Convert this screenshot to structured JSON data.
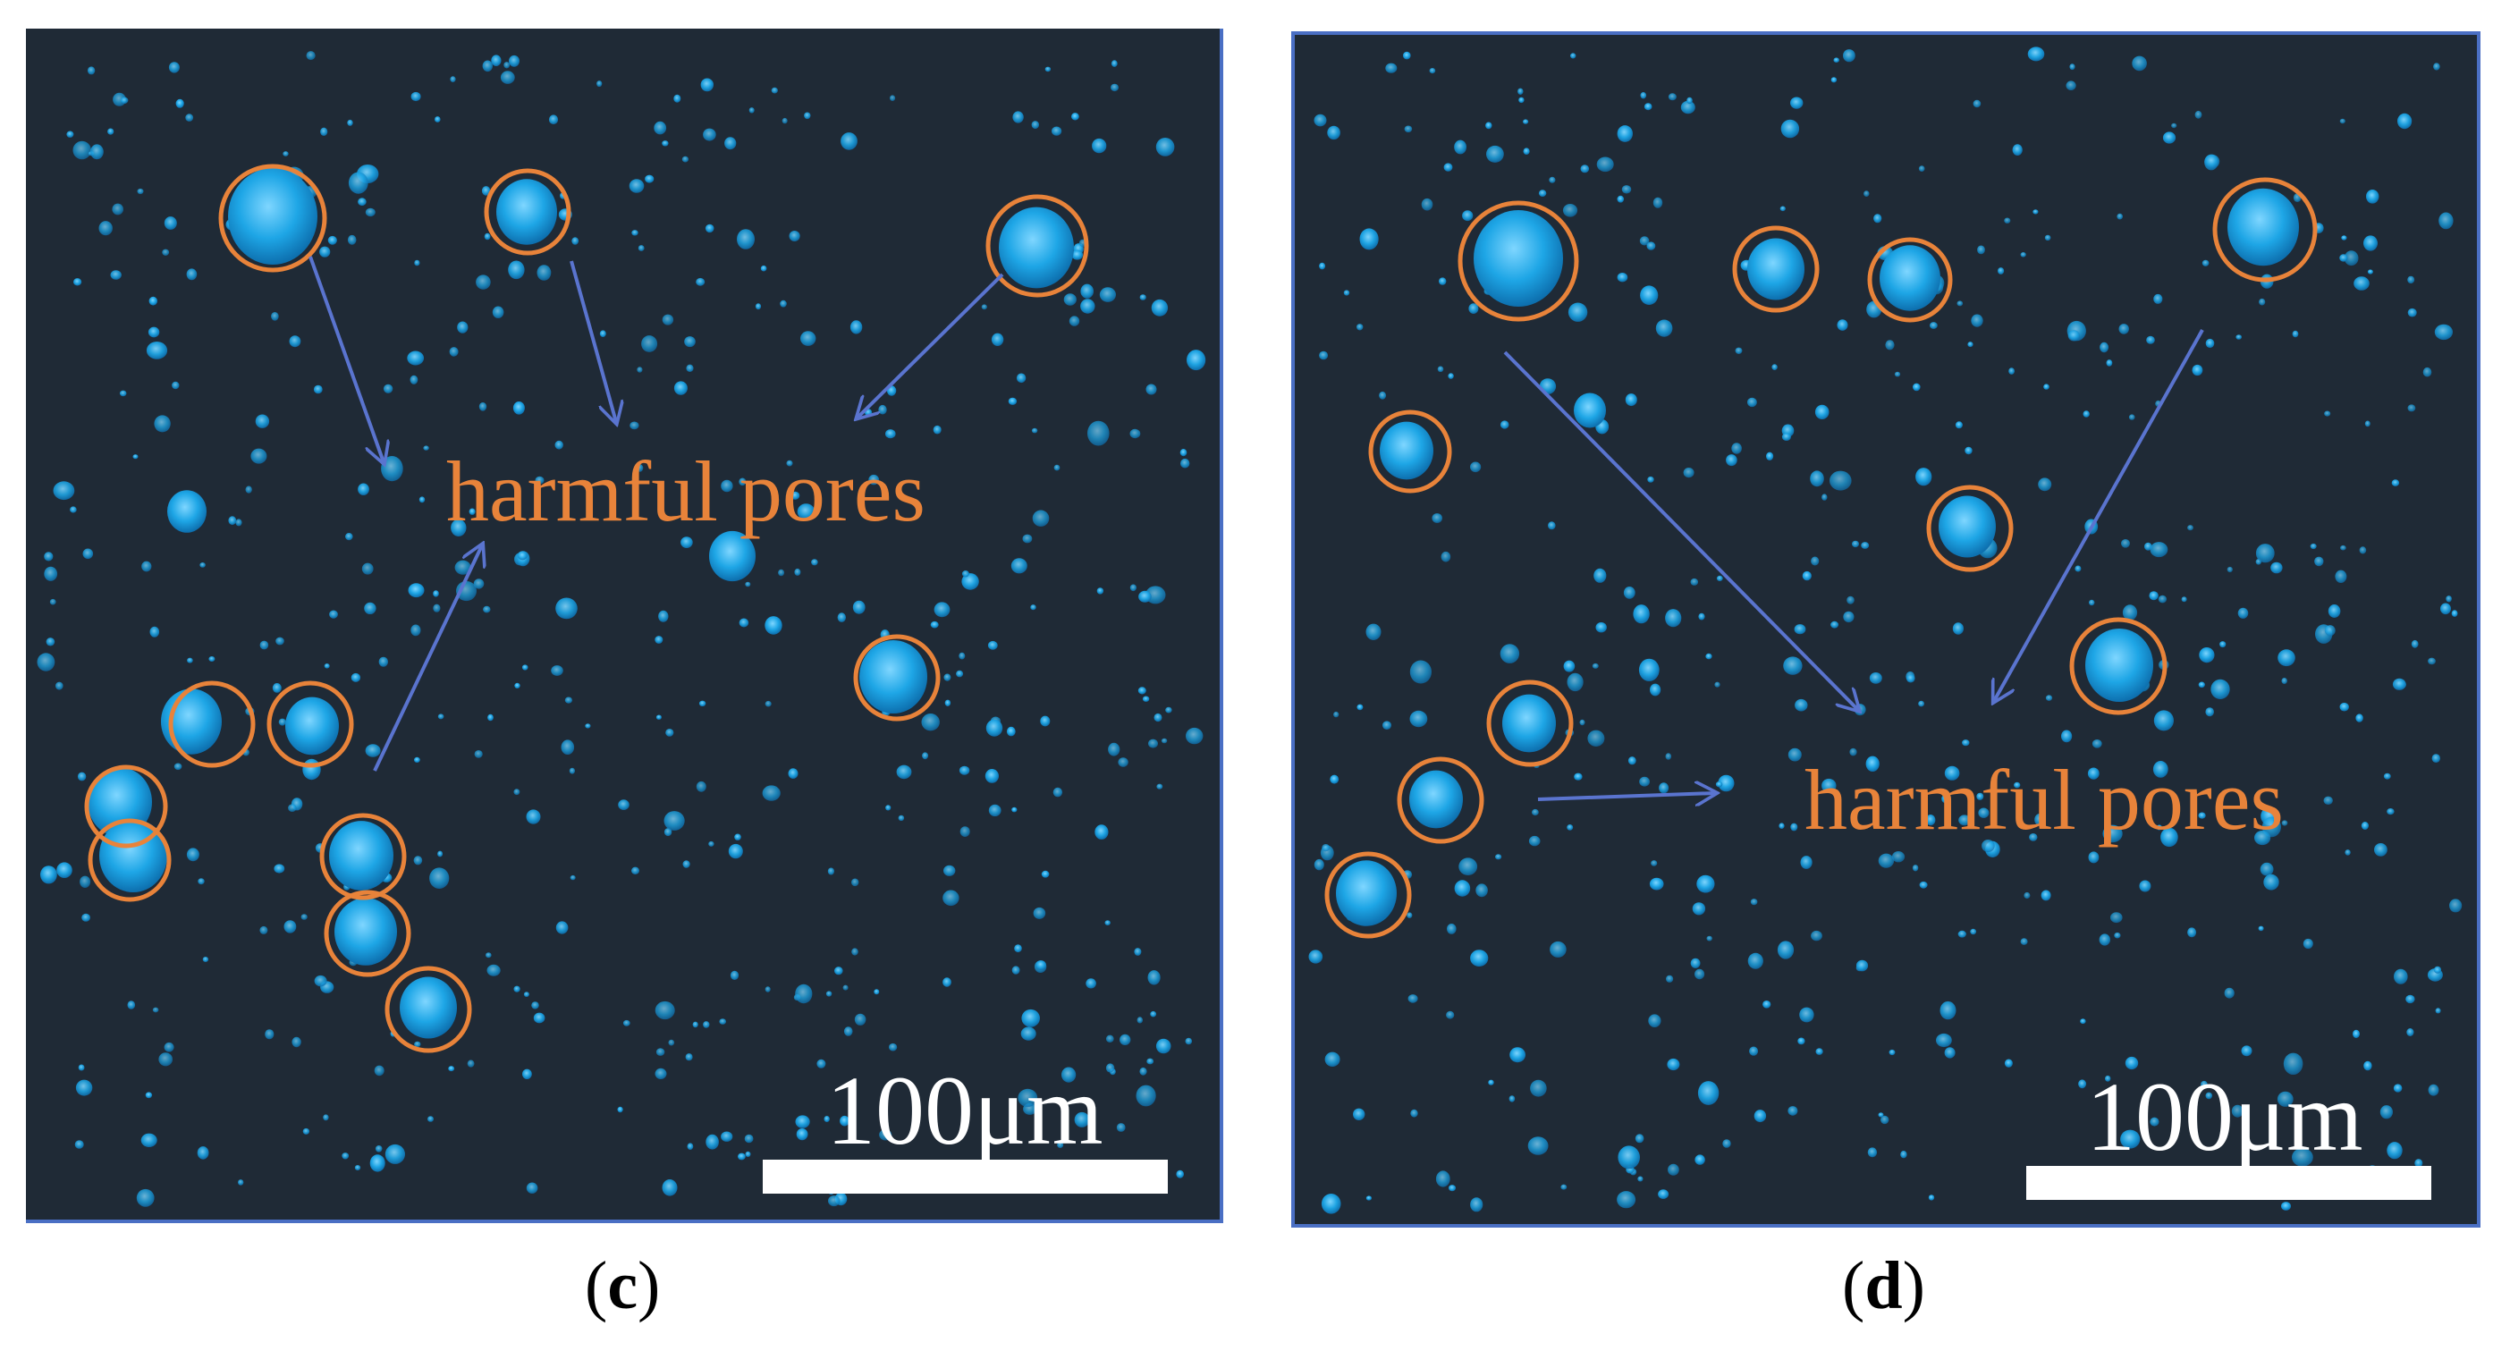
{
  "panels": [
    {
      "id": "c",
      "caption_open": "(",
      "caption_letter": "c",
      "caption_close": ")",
      "annotation": "harmful pores",
      "scale_label": "100μm"
    },
    {
      "id": "d",
      "caption_open": "(",
      "caption_letter": "d",
      "caption_close": ")",
      "annotation": "harmful pores",
      "scale_label": "100μm"
    }
  ],
  "colors": {
    "background": "#1f2a36",
    "pore": "#1ea6e6",
    "circle": "#e8833a",
    "arrow": "#5a74cf",
    "annotation": "#e8833a",
    "scale": "#ffffff"
  }
}
